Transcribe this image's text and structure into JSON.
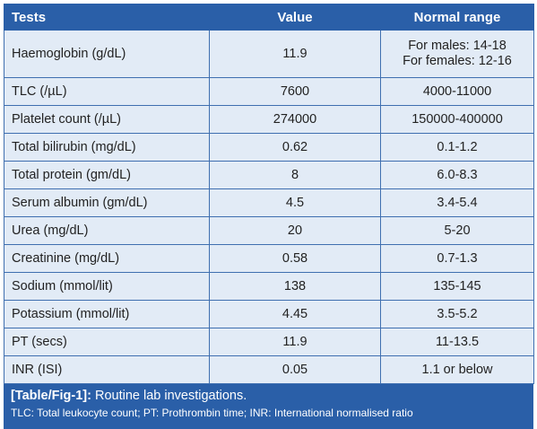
{
  "table": {
    "header": [
      "Tests",
      "Value",
      "Normal range"
    ],
    "rows": [
      [
        "Haemoglobin (g/dL)",
        "11.9",
        [
          "For males: 14-18",
          "For females: 12-16"
        ]
      ],
      [
        "TLC (/µL)",
        "7600",
        "4000-11000"
      ],
      [
        "Platelet count (/µL)",
        "274000",
        "150000-400000"
      ],
      [
        "Total bilirubin (mg/dL)",
        "0.62",
        "0.1-1.2"
      ],
      [
        "Total protein (gm/dL)",
        "8",
        "6.0-8.3"
      ],
      [
        "Serum albumin (gm/dL)",
        "4.5",
        "3.4-5.4"
      ],
      [
        "Urea (mg/dL)",
        "20",
        "5-20"
      ],
      [
        "Creatinine (mg/dL)",
        "0.58",
        "0.7-1.3"
      ],
      [
        "Sodium (mmol/lit)",
        "138",
        "135-145"
      ],
      [
        "Potassium (mmol/lit)",
        "4.45",
        "3.5-5.2"
      ],
      [
        "PT (secs)",
        "11.9",
        "11-13.5"
      ],
      [
        "INR (ISI)",
        "0.05",
        "1.1 or below"
      ]
    ]
  },
  "caption": {
    "label": "[Table/Fig-1]:",
    "text": "Routine lab investigations.",
    "note": "TLC: Total leukocyte count; PT: Prothrombin time; INR: International normalised ratio"
  }
}
